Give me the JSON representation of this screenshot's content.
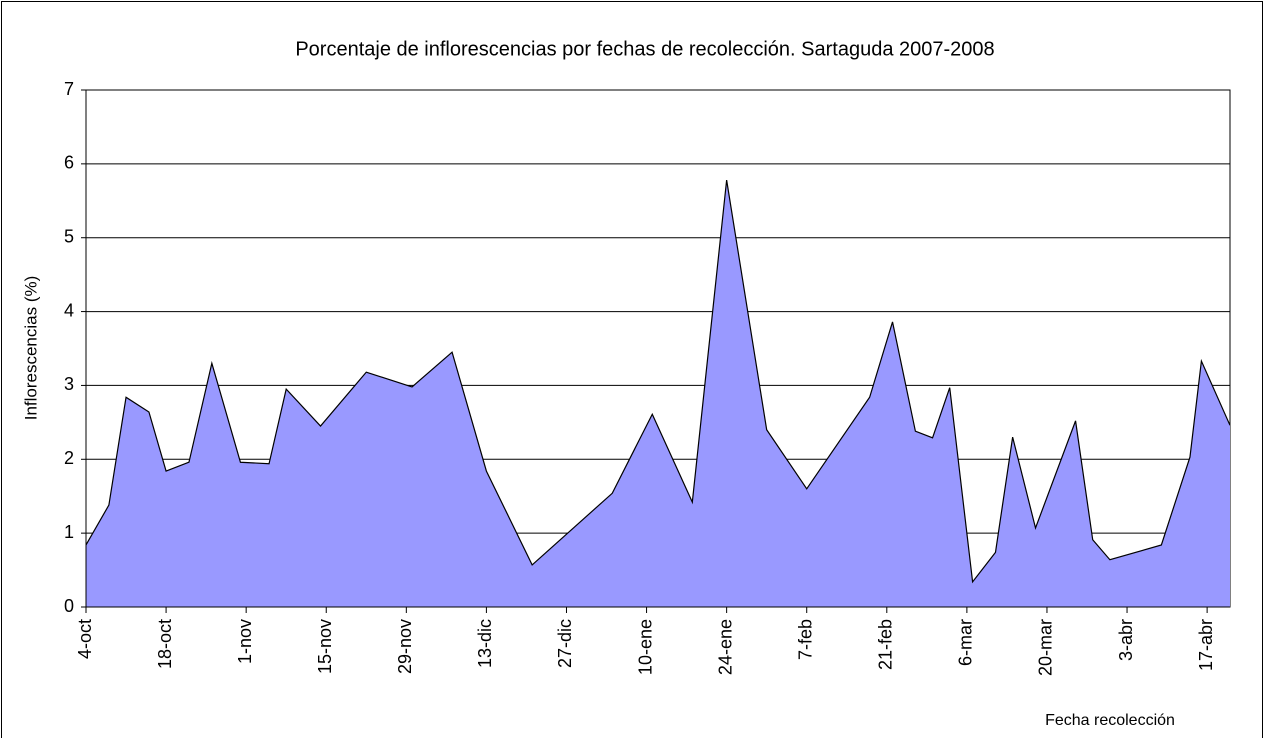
{
  "chart_data": {
    "type": "area",
    "title": "Porcentaje de inflorescencias por fechas de recolección. Sartaguda 2007-2008",
    "x_label": "Fecha recolección",
    "y_label": "Inflorescencias (%)",
    "x": [
      0,
      4,
      7,
      11,
      14,
      18,
      22,
      27,
      32,
      35,
      41,
      49,
      57,
      64,
      70,
      78,
      92,
      99,
      106,
      112,
      119,
      126,
      137,
      141,
      145,
      148,
      151,
      155,
      159,
      162,
      166,
      173,
      176,
      179,
      188,
      193,
      195,
      200
    ],
    "series": [
      {
        "name": "Inflorescencias",
        "color": "#9999ff",
        "values": [
          0.84,
          1.38,
          2.84,
          2.64,
          1.84,
          1.96,
          3.3,
          1.96,
          1.94,
          2.95,
          2.45,
          3.18,
          2.98,
          3.45,
          1.84,
          0.57,
          1.54,
          2.61,
          1.42,
          5.78,
          2.4,
          1.6,
          2.84,
          3.86,
          2.38,
          2.29,
          2.97,
          0.34,
          0.74,
          2.3,
          1.07,
          2.52,
          0.91,
          0.64,
          0.84,
          2.03,
          3.33,
          2.46
        ]
      }
    ],
    "xlim": [
      0,
      200
    ],
    "ylim": [
      0,
      7
    ],
    "xticks": [
      {
        "value": 0,
        "label": "4-oct"
      },
      {
        "value": 14,
        "label": "18-oct"
      },
      {
        "value": 28,
        "label": "1-nov"
      },
      {
        "value": 42,
        "label": "15-nov"
      },
      {
        "value": 56,
        "label": "29-nov"
      },
      {
        "value": 70,
        "label": "13-dic"
      },
      {
        "value": 84,
        "label": "27-dic"
      },
      {
        "value": 98,
        "label": "10-ene"
      },
      {
        "value": 112,
        "label": "24-ene"
      },
      {
        "value": 126,
        "label": "7-feb"
      },
      {
        "value": 140,
        "label": "21-feb"
      },
      {
        "value": 154,
        "label": "6-mar"
      },
      {
        "value": 168,
        "label": "20-mar"
      },
      {
        "value": 182,
        "label": "3-abr"
      },
      {
        "value": 196,
        "label": "17-abr"
      }
    ],
    "yticks": [
      0,
      1,
      2,
      3,
      4,
      5,
      6,
      7
    ],
    "grid": true
  }
}
